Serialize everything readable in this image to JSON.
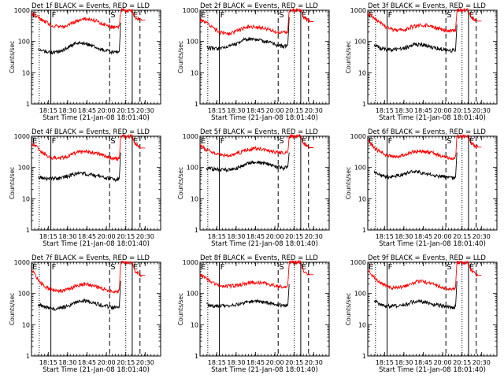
{
  "chart_data": {
    "type": "line",
    "xlabel": "Start Time (21-Jan-08 18:01:40)",
    "ylabel": "Counts/sec",
    "yscale": "log",
    "ylim": [
      1,
      1000
    ],
    "y_ticks": [
      "1",
      "10",
      "100",
      "1000"
    ],
    "x_tick_labels": [
      "18:15",
      "18:30",
      "18:45",
      "20:00",
      "20:15",
      "20:30"
    ],
    "x_tick_minutes": [
      13,
      28,
      43,
      58,
      73,
      88
    ],
    "xlim_minutes": [
      0,
      100
    ],
    "marker_labels": [
      "E",
      "F",
      "S",
      "E"
    ],
    "colors": {
      "events": "#000000",
      "lld": "#ff0000"
    },
    "panels": [
      {
        "title": "Det 1f BLACK = Events, RED = LLD",
        "series": [
          {
            "key": "events",
            "x": [
              5,
              10,
              15,
              20,
              25,
              30,
              35,
              40,
              45,
              50,
              55,
              60,
              65,
              68,
              69
            ],
            "y": [
              60,
              50,
              45,
              45,
              55,
              70,
              90,
              90,
              80,
              65,
              55,
              48,
              45,
              48,
              400
            ]
          },
          {
            "key": "lld",
            "x": [
              0,
              5,
              10,
              15,
              20,
              25,
              30,
              35,
              40,
              45,
              50,
              55,
              60,
              65,
              68,
              69,
              70,
              74,
              78,
              80,
              85,
              88
            ],
            "y": [
              800,
              600,
              450,
              340,
              300,
              300,
              350,
              450,
              520,
              520,
              460,
              360,
              300,
              280,
              300,
              1000,
              1000,
              1000,
              1000,
              600,
              480,
              480
            ]
          }
        ]
      },
      {
        "title": "Det 2f BLACK = Events, RED = LLD",
        "series": [
          {
            "key": "events",
            "x": [
              5,
              10,
              15,
              20,
              25,
              30,
              35,
              40,
              45,
              50,
              55,
              60,
              65,
              68,
              69
            ],
            "y": [
              65,
              60,
              60,
              65,
              75,
              90,
              120,
              125,
              115,
              100,
              90,
              75,
              70,
              80,
              600
            ]
          },
          {
            "key": "lld",
            "x": [
              0,
              5,
              10,
              15,
              20,
              25,
              30,
              35,
              40,
              45,
              50,
              55,
              60,
              65,
              68,
              69,
              70,
              74,
              78,
              80,
              85,
              88
            ],
            "y": [
              500,
              400,
              280,
              200,
              180,
              190,
              230,
              290,
              300,
              290,
              270,
              230,
              200,
              190,
              200,
              1000,
              1000,
              1000,
              1000,
              600,
              430,
              430
            ]
          }
        ]
      },
      {
        "title": "Det 3f BLACK = Events, RED = LLD",
        "series": [
          {
            "key": "events",
            "x": [
              5,
              10,
              15,
              20,
              25,
              30,
              35,
              40,
              45,
              50,
              55,
              60,
              65,
              68,
              69
            ],
            "y": [
              80,
              62,
              55,
              55,
              60,
              65,
              80,
              80,
              75,
              65,
              60,
              55,
              52,
              55,
              350
            ]
          },
          {
            "key": "lld",
            "x": [
              0,
              5,
              10,
              15,
              20,
              25,
              30,
              35,
              40,
              45,
              50,
              55,
              60,
              65,
              68,
              69,
              70,
              74,
              78,
              80,
              85,
              88
            ],
            "y": [
              800,
              550,
              380,
              270,
              230,
              230,
              250,
              300,
              330,
              330,
              300,
              260,
              230,
              220,
              230,
              1000,
              1000,
              1000,
              1000,
              600,
              450,
              450
            ]
          }
        ]
      },
      {
        "title": "Det 4f BLACK = Events, RED = LLD",
        "series": [
          {
            "key": "events",
            "x": [
              5,
              10,
              15,
              20,
              25,
              30,
              35,
              40,
              45,
              50,
              55,
              60,
              65,
              68,
              69
            ],
            "y": [
              50,
              45,
              45,
              45,
              50,
              55,
              65,
              65,
              60,
              55,
              50,
              45,
              40,
              45,
              300
            ]
          },
          {
            "key": "lld",
            "x": [
              0,
              5,
              10,
              15,
              20,
              25,
              30,
              35,
              40,
              45,
              50,
              55,
              60,
              65,
              68,
              69,
              70,
              74,
              78,
              80,
              85,
              88
            ],
            "y": [
              650,
              400,
              270,
              210,
              200,
              210,
              250,
              300,
              320,
              320,
              290,
              250,
              210,
              190,
              200,
              1000,
              1000,
              1000,
              1000,
              600,
              420,
              420
            ]
          }
        ]
      },
      {
        "title": "Det 5f BLACK = Events, RED = LLD",
        "series": [
          {
            "key": "events",
            "x": [
              5,
              10,
              15,
              20,
              25,
              30,
              35,
              40,
              45,
              50,
              55,
              60,
              65,
              68,
              69
            ],
            "y": [
              95,
              90,
              85,
              85,
              90,
              100,
              125,
              145,
              150,
              135,
              120,
              105,
              95,
              105,
              300
            ]
          },
          {
            "key": "lld",
            "x": [
              0,
              5,
              10,
              15,
              20,
              25,
              30,
              35,
              40,
              45,
              50,
              55,
              60,
              65,
              68,
              69,
              70,
              74,
              78,
              80,
              85,
              88
            ],
            "y": [
              500,
              370,
              300,
              260,
              250,
              260,
              290,
              350,
              400,
              410,
              380,
              330,
              300,
              290,
              300,
              1000,
              1000,
              1000,
              1000,
              600,
              430,
              430
            ]
          }
        ]
      },
      {
        "title": "Det 6f BLACK = Events, RED = LLD",
        "series": [
          {
            "key": "events",
            "x": [
              5,
              10,
              15,
              20,
              25,
              30,
              35,
              40,
              45,
              50,
              55,
              60,
              65,
              68,
              69
            ],
            "y": [
              70,
              55,
              50,
              52,
              58,
              65,
              75,
              70,
              65,
              58,
              55,
              50,
              45,
              50,
              300
            ]
          },
          {
            "key": "lld",
            "x": [
              0,
              5,
              10,
              15,
              20,
              25,
              30,
              35,
              40,
              45,
              50,
              55,
              60,
              65,
              68,
              69,
              70,
              74,
              78,
              80,
              85,
              88
            ],
            "y": [
              700,
              450,
              300,
              240,
              220,
              230,
              270,
              320,
              330,
              320,
              290,
              250,
              220,
              200,
              210,
              1000,
              1000,
              1000,
              1000,
              600,
              450,
              450
            ]
          }
        ]
      },
      {
        "title": "Det 7f BLACK = Events, RED = LLD",
        "series": [
          {
            "key": "events",
            "x": [
              5,
              10,
              15,
              20,
              25,
              30,
              35,
              40,
              45,
              50,
              55,
              60,
              65,
              68,
              69
            ],
            "y": [
              45,
              38,
              33,
              33,
              37,
              43,
              55,
              60,
              55,
              48,
              42,
              38,
              35,
              38,
              250
            ]
          },
          {
            "key": "lld",
            "x": [
              0,
              5,
              10,
              15,
              20,
              25,
              30,
              35,
              40,
              45,
              50,
              55,
              60,
              65,
              68,
              69,
              70,
              74,
              78,
              80,
              85,
              88
            ],
            "y": [
              600,
              280,
              170,
              130,
              120,
              125,
              145,
              180,
              200,
              190,
              170,
              140,
              120,
              110,
              120,
              1000,
              1000,
              1000,
              1000,
              550,
              380,
              380
            ]
          }
        ]
      },
      {
        "title": "Det 8f BLACK = Events, RED = LLD",
        "series": [
          {
            "key": "events",
            "x": [
              5,
              10,
              15,
              20,
              25,
              30,
              35,
              40,
              45,
              50,
              55,
              60,
              65,
              68,
              69
            ],
            "y": [
              45,
              40,
              40,
              40,
              42,
              45,
              50,
              55,
              55,
              52,
              48,
              44,
              40,
              42,
              200
            ]
          },
          {
            "key": "lld",
            "x": [
              0,
              5,
              10,
              15,
              20,
              25,
              30,
              35,
              40,
              45,
              50,
              55,
              60,
              65,
              68,
              69,
              70,
              74,
              78,
              80,
              85,
              88
            ],
            "y": [
              400,
              300,
              220,
              180,
              170,
              175,
              185,
              210,
              230,
              230,
              210,
              190,
              170,
              160,
              170,
              1000,
              1000,
              1000,
              1000,
              550,
              400,
              400
            ]
          }
        ]
      },
      {
        "title": "Det 9f BLACK = Events, RED = LLD",
        "series": [
          {
            "key": "events",
            "x": [
              5,
              10,
              15,
              20,
              25,
              30,
              35,
              40,
              45,
              50,
              55,
              60,
              65,
              68,
              69
            ],
            "y": [
              60,
              45,
              40,
              40,
              42,
              45,
              55,
              58,
              52,
              45,
              42,
              38,
              35,
              38,
              250
            ]
          },
          {
            "key": "lld",
            "x": [
              0,
              5,
              10,
              15,
              20,
              25,
              30,
              35,
              40,
              45,
              50,
              55,
              60,
              65,
              68,
              69,
              70,
              74,
              78,
              80,
              85,
              88
            ],
            "y": [
              550,
              330,
              220,
              170,
              150,
              155,
              180,
              220,
              240,
              230,
              200,
              170,
              150,
              140,
              150,
              1000,
              1000,
              1000,
              1000,
              550,
              380,
              380
            ]
          }
        ]
      }
    ]
  }
}
